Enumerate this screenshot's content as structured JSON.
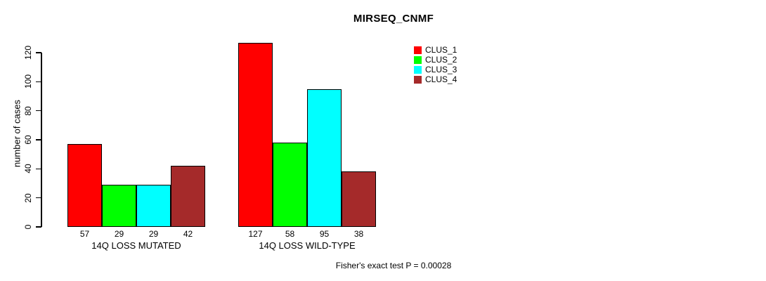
{
  "chart_data": {
    "type": "bar",
    "title": "MIRSEQ_CNMF",
    "ylabel": "number of cases",
    "xlabel": "",
    "categories": [
      "14Q LOSS MUTATED",
      "14Q LOSS WILD-TYPE"
    ],
    "series": [
      {
        "name": "CLUS_1",
        "color": "#FF0000",
        "values": [
          57,
          127
        ]
      },
      {
        "name": "CLUS_2",
        "color": "#00FF00",
        "values": [
          29,
          58
        ]
      },
      {
        "name": "CLUS_3",
        "color": "#00FFFF",
        "values": [
          29,
          95
        ]
      },
      {
        "name": "CLUS_4",
        "color": "#A52A2A",
        "values": [
          42,
          38
        ]
      }
    ],
    "yticks": [
      0,
      20,
      40,
      60,
      80,
      100,
      120
    ],
    "ylim": [
      0,
      130
    ],
    "grid": false,
    "legend_position": "top-right",
    "bar_value_labels": true,
    "annotation": "Fisher's exact test P = 0.00028"
  }
}
